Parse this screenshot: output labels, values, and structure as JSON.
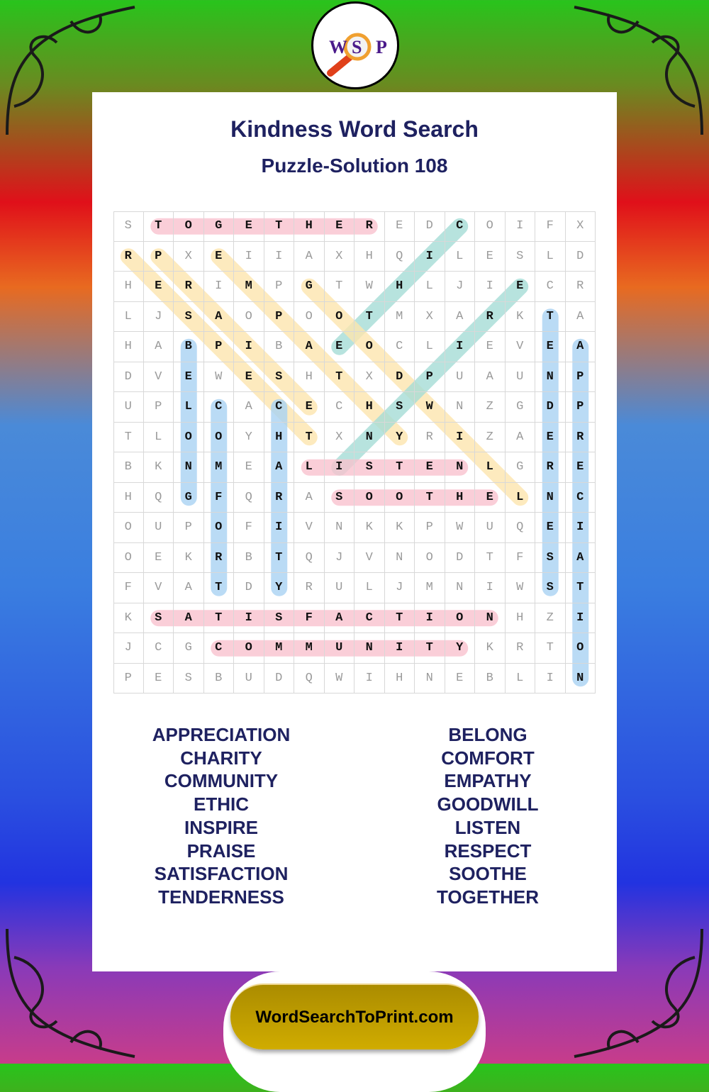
{
  "logo": {
    "letters": [
      "W",
      "S",
      "P"
    ],
    "icon": "magnifying-glass-icon"
  },
  "title": "Kindness Word Search",
  "subtitle": "Puzzle-Solution 108",
  "grid": [
    "STOGETHEREDCOIFX",
    "RPXEIIAXHQILESLD",
    "HERIMPGTWHLJIECR",
    "LJSAOPOOTMXARKTA",
    "HABPIBAEOCLIEVEA",
    "DVEWESHTXDPUAUNP",
    "UPLCACECHSWNZGDP",
    "TLOOYHTXNYRIZAER",
    "BKNMEALISTENLGRE",
    "HQGFQRASOOTHELNC",
    "OUPOFIVNKKPWUQEI",
    "OEKRBTQJVNODTFSA",
    "FVATDYRULJMNIWST",
    "KSATISFACTIONHZI",
    "JCGCOMMUNITYKRTO",
    "PESBUDQWIHNEBLIN"
  ],
  "highlight_colors": {
    "pink": "#f9c3cf",
    "yellow": "#fde6ae",
    "teal": "#a6ddd6",
    "blue": "#a9d3f3"
  },
  "solutions": [
    {
      "word": "TOGETHER",
      "start": [
        0,
        1
      ],
      "end": [
        0,
        8
      ],
      "color": "pink"
    },
    {
      "word": "ETHIC",
      "start": [
        4,
        7
      ],
      "end": [
        0,
        11
      ],
      "color": "teal"
    },
    {
      "word": "EMPATHY",
      "start": [
        1,
        3
      ],
      "end": [
        7,
        9
      ],
      "color": "yellow"
    },
    {
      "word": "RESPECT",
      "start": [
        1,
        0
      ],
      "end": [
        7,
        6
      ],
      "color": "yellow"
    },
    {
      "word": "PRAISE",
      "start": [
        1,
        1
      ],
      "end": [
        6,
        6
      ],
      "color": "yellow"
    },
    {
      "word": "GOODWILL",
      "start": [
        2,
        6
      ],
      "end": [
        9,
        13
      ],
      "color": "yellow"
    },
    {
      "word": "INSPIRE",
      "start": [
        8,
        7
      ],
      "end": [
        2,
        13
      ],
      "color": "teal"
    },
    {
      "word": "BELONG",
      "start": [
        4,
        2
      ],
      "end": [
        9,
        2
      ],
      "color": "blue"
    },
    {
      "word": "COMFORT",
      "start": [
        6,
        3
      ],
      "end": [
        12,
        3
      ],
      "color": "blue"
    },
    {
      "word": "CHARITY",
      "start": [
        6,
        5
      ],
      "end": [
        12,
        5
      ],
      "color": "blue"
    },
    {
      "word": "TENDERNESS",
      "start": [
        3,
        14
      ],
      "end": [
        12,
        14
      ],
      "color": "blue"
    },
    {
      "word": "APPRECIATION",
      "start": [
        4,
        15
      ],
      "end": [
        15,
        15
      ],
      "color": "blue"
    },
    {
      "word": "LISTEN",
      "start": [
        8,
        6
      ],
      "end": [
        8,
        11
      ],
      "color": "pink"
    },
    {
      "word": "SOOTHE",
      "start": [
        9,
        7
      ],
      "end": [
        9,
        12
      ],
      "color": "pink"
    },
    {
      "word": "SATISFACTION",
      "start": [
        13,
        1
      ],
      "end": [
        13,
        12
      ],
      "color": "pink"
    },
    {
      "word": "COMMUNITY",
      "start": [
        14,
        3
      ],
      "end": [
        14,
        11
      ],
      "color": "pink"
    }
  ],
  "word_list": {
    "left": [
      "APPRECIATION",
      "CHARITY",
      "COMMUNITY",
      "ETHIC",
      "INSPIRE",
      "PRAISE",
      "SATISFACTION",
      "TENDERNESS"
    ],
    "right": [
      "BELONG",
      "COMFORT",
      "EMPATHY",
      "GOODWILL",
      "LISTEN",
      "RESPECT",
      "SOOTHE",
      "TOGETHER"
    ]
  },
  "footer": {
    "site_label": "WordSearchToPrint.com"
  }
}
